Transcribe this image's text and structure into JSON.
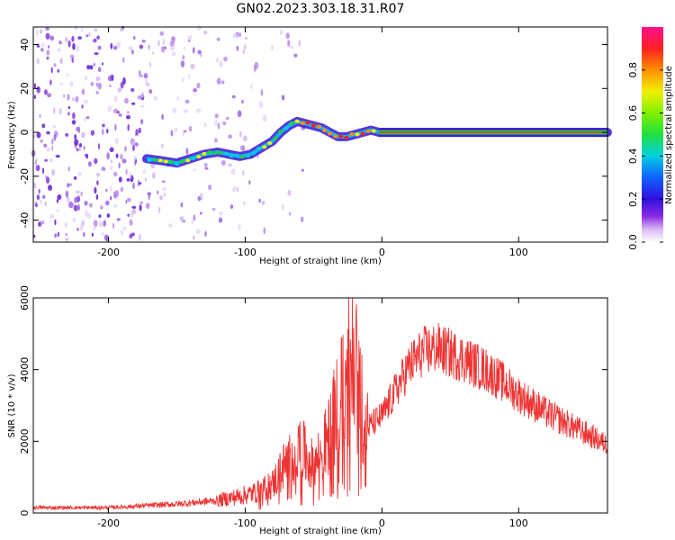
{
  "title": "GN02.2023.303.18.31.R07",
  "chart_data": [
    {
      "type": "heatmap",
      "xlabel": "Height of straight line (km)",
      "ylabel": "Frequency (Hz)",
      "xlim": [
        -255,
        165
      ],
      "ylim": [
        -50,
        48
      ],
      "xticks": [
        -200,
        -100,
        0,
        100
      ],
      "yticks": [
        -40,
        -20,
        0,
        20,
        40
      ],
      "colorbar": {
        "label": "Normalized spectral amplitude",
        "range": [
          0,
          1
        ],
        "ticks": [
          0.0,
          0.2,
          0.4,
          0.6,
          0.8
        ]
      },
      "ridge": {
        "x": [
          -172,
          -160,
          -150,
          -140,
          -130,
          -120,
          -112,
          -104,
          -96,
          -88,
          -80,
          -74,
          -68,
          -62,
          -56,
          -50,
          -44,
          -38,
          -32,
          -26,
          -20,
          -14,
          -8,
          -2,
          165
        ],
        "y": [
          -12,
          -13,
          -14,
          -12,
          -10,
          -9,
          -10,
          -11,
          -10,
          -7,
          -4,
          0,
          3,
          5,
          4,
          3,
          2,
          0,
          -2,
          -2,
          -1,
          0,
          1,
          0,
          0
        ]
      }
    },
    {
      "type": "line",
      "xlabel": "Height of straight line (km)",
      "ylabel": "SNR (10 * v/v)",
      "xlim": [
        -255,
        165
      ],
      "ylim": [
        0,
        6000
      ],
      "xticks": [
        -200,
        -100,
        0,
        100
      ],
      "yticks": [
        0,
        2000,
        4000,
        6000
      ],
      "color": "#ee3333",
      "envelope": {
        "x": [
          -255,
          -200,
          -150,
          -120,
          -100,
          -90,
          -80,
          -70,
          -60,
          -50,
          -40,
          -30,
          -20,
          -10,
          0,
          10,
          20,
          30,
          40,
          60,
          80,
          100,
          120,
          140,
          165
        ],
        "y": [
          150,
          150,
          250,
          350,
          500,
          600,
          800,
          1400,
          1800,
          1300,
          2000,
          3200,
          3900,
          2400,
          2700,
          3400,
          4100,
          4500,
          4600,
          4300,
          3900,
          3300,
          2800,
          2400,
          1900
        ]
      }
    }
  ]
}
